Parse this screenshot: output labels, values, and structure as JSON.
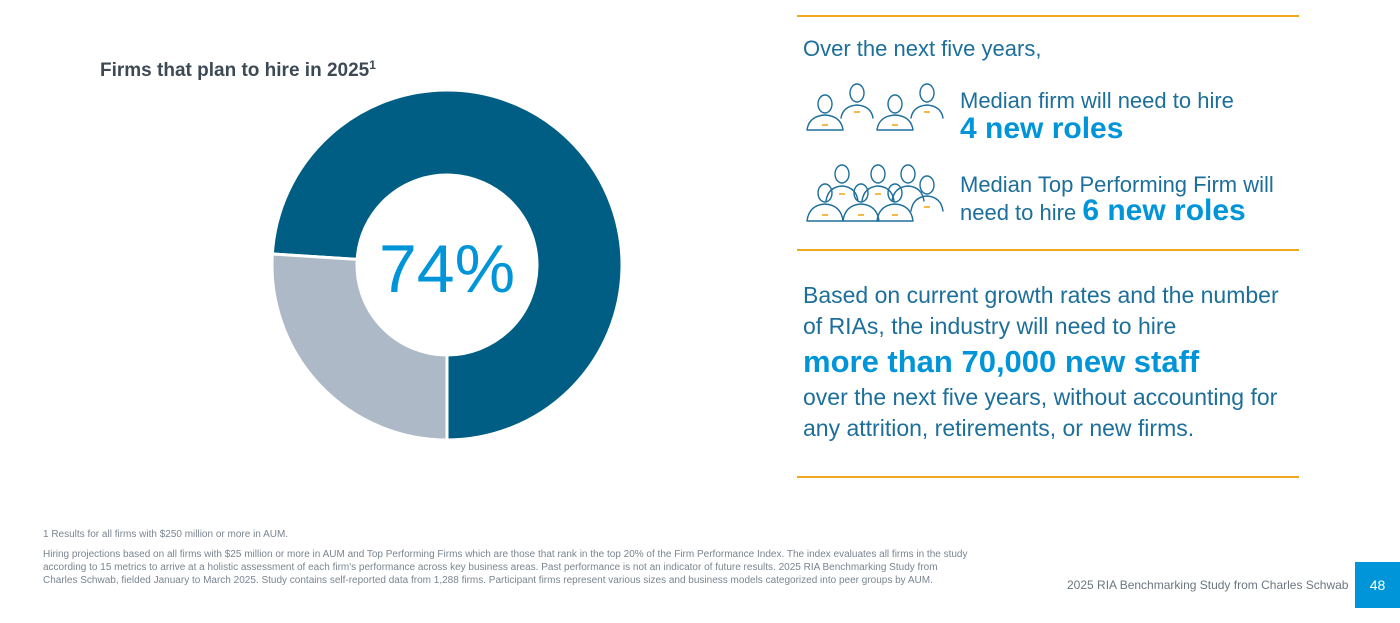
{
  "chart_data": {
    "type": "pie",
    "title": "Firms that plan to hire in 2025",
    "title_superscript": "1",
    "center_label": "74%",
    "slices": [
      {
        "value": 74,
        "color": "#005e85"
      },
      {
        "value": 26,
        "color": "#adb9c6"
      }
    ]
  },
  "right_panel": {
    "intro": "Over the next five years,",
    "median_firm": {
      "line1": "Median firm will need to hire",
      "emphasis": "4 new roles"
    },
    "top_firm": {
      "line1": "Median Top Performing Firm will",
      "line2_prefix": "need to hire",
      "emphasis": "6 new roles"
    },
    "paragraph": {
      "before": "Based on current growth rates and the number of RIAs, the industry will need to hire",
      "emphasis": "more than 70,000 new staff",
      "after": "over the next five years, without accounting for any attrition, retirements, or new firms."
    }
  },
  "icons": {
    "median_firm": "four-people-icon",
    "top_firm": "six-people-icon"
  },
  "colors": {
    "accent_rule": "#f0a81c",
    "primary_blue": "#0095d9",
    "dark_teal": "#005e85",
    "light_gray": "#adb9c6"
  },
  "footnotes": {
    "note1": "1 Results for all firms with $250 million or more in AUM.",
    "note2": "Hiring projections based on all firms with $25 million or more in AUM and Top Performing Firms which are those that rank in the top 20% of the Firm Performance Index. The index evaluates all firms in the study according to 15 metrics to arrive at a holistic assessment of each firm's performance across key business areas. Past performance is not an indicator of future results. 2025 RIA Benchmarking Study from Charles Schwab, fielded January to March 2025. Study contains self-reported data from 1,288 firms. Participant firms represent various sizes and business models categorized into peer groups by AUM."
  },
  "footer": {
    "source": "2025 RIA Benchmarking Study from Charles Schwab",
    "page_number": "48"
  }
}
